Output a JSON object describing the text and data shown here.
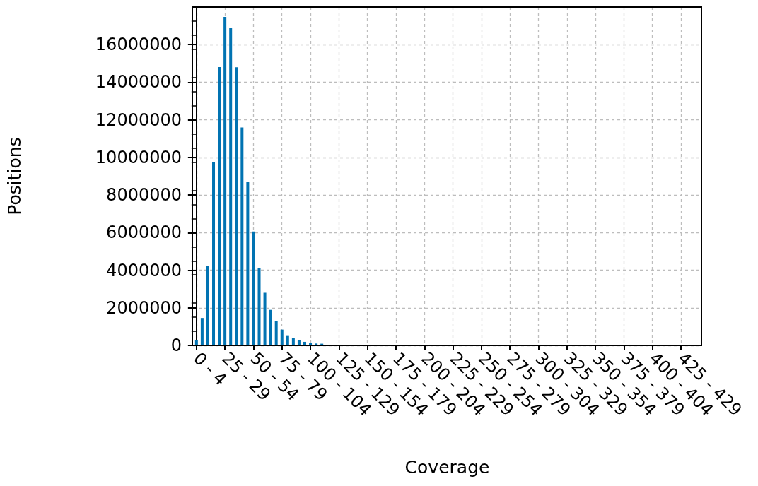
{
  "chart_data": {
    "type": "bar",
    "xlabel": "Coverage",
    "ylabel": "Positions",
    "categories": [
      "0 - 4",
      null,
      null,
      null,
      null,
      "25 - 29",
      null,
      null,
      null,
      null,
      "50 - 54",
      null,
      null,
      null,
      null,
      "75 - 79",
      null,
      null,
      null,
      null,
      "100 - 104",
      null,
      null,
      null,
      null,
      "125 - 129",
      null,
      null,
      null,
      null,
      "150 - 154",
      null,
      null,
      null,
      null,
      "175 - 179",
      null,
      null,
      null,
      null,
      "200 - 204",
      null,
      null,
      null,
      null,
      "225 - 229",
      null,
      null,
      null,
      null,
      "250 - 254",
      null,
      null,
      null,
      null,
      "275 - 279",
      null,
      null,
      null,
      null,
      "300 - 304",
      null,
      null,
      null,
      null,
      "325 - 329",
      null,
      null,
      null,
      null,
      "350 - 354",
      null,
      null,
      null,
      null,
      "375 - 379",
      null,
      null,
      null,
      null,
      "400 - 404",
      null,
      null,
      null,
      null,
      "425 - 429"
    ],
    "values": [
      270000,
      1460000,
      4210000,
      9750000,
      14810000,
      17470000,
      16870000,
      14800000,
      11590000,
      8700000,
      6060000,
      4120000,
      2800000,
      1890000,
      1280000,
      840000,
      540000,
      390000,
      270000,
      190000,
      130000,
      100000,
      90000,
      0,
      0,
      0,
      0,
      0,
      0,
      0,
      0,
      0,
      0,
      0,
      0,
      0,
      0,
      0,
      0,
      0,
      0,
      0,
      0,
      0,
      0,
      0,
      0,
      0,
      0,
      0,
      0,
      0,
      0,
      0,
      0,
      0,
      0,
      0,
      0,
      0,
      0,
      0,
      0,
      0,
      0,
      0,
      0,
      0,
      0,
      0,
      0,
      0,
      0,
      0,
      0,
      0,
      0,
      0,
      0,
      0,
      0,
      0,
      0,
      0,
      0,
      0
    ],
    "color": "#0173b2",
    "ylim": [
      0,
      18000000
    ],
    "yticks": [
      0,
      2000000,
      4000000,
      6000000,
      8000000,
      10000000,
      12000000,
      14000000,
      16000000
    ],
    "grid": true
  }
}
